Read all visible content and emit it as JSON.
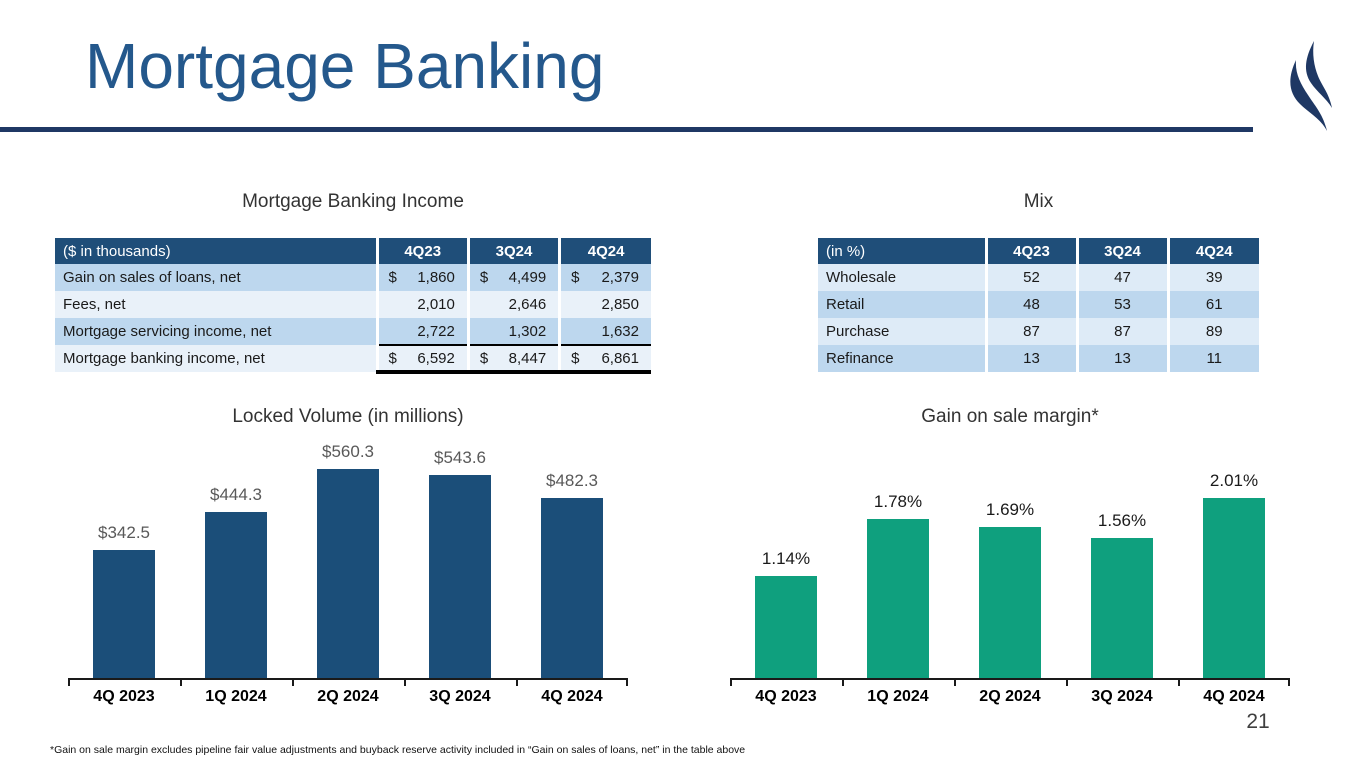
{
  "slide": {
    "title": "Mortgage Banking",
    "page_number": "21",
    "footnote": "*Gain on sale margin excludes pipeline fair value adjustments and buyback reserve activity included in “Gain on sales of loans, net” in the table above",
    "accent_navy": "#1F3864",
    "title_color": "#24588C",
    "table_header_color": "#1F4E79"
  },
  "income_table": {
    "title": "Mortgage Banking Income",
    "unit_label": "($ in thousands)",
    "columns": [
      "4Q23",
      "3Q24",
      "4Q24"
    ],
    "rows": [
      {
        "label": "Gain on sales of loans, net",
        "dollar": true,
        "total": false,
        "values": [
          "1,860",
          "4,499",
          "2,379"
        ]
      },
      {
        "label": "Fees, net",
        "dollar": false,
        "total": false,
        "values": [
          "2,010",
          "2,646",
          "2,850"
        ]
      },
      {
        "label": "Mortgage servicing income, net",
        "dollar": false,
        "total": false,
        "values": [
          "2,722",
          "1,302",
          "1,632"
        ]
      },
      {
        "label": "Mortgage banking income, net",
        "dollar": true,
        "total": true,
        "values": [
          "6,592",
          "8,447",
          "6,861"
        ]
      }
    ]
  },
  "mix_table": {
    "title": "Mix",
    "unit_label": "(in %)",
    "columns": [
      "4Q23",
      "3Q24",
      "4Q24"
    ],
    "rows": [
      {
        "label": "Wholesale",
        "values": [
          "52",
          "47",
          "39"
        ]
      },
      {
        "label": "Retail",
        "values": [
          "48",
          "53",
          "61"
        ]
      },
      {
        "label": "Purchase",
        "values": [
          "87",
          "87",
          "89"
        ]
      },
      {
        "label": "Refinance",
        "values": [
          "13",
          "13",
          "11"
        ]
      }
    ]
  },
  "chart_data": [
    {
      "type": "bar",
      "title": "Locked Volume (in millions)",
      "categories": [
        "4Q 2023",
        "1Q 2024",
        "2Q 2024",
        "3Q 2024",
        "4Q 2024"
      ],
      "values": [
        342.5,
        444.3,
        560.3,
        543.6,
        482.3
      ],
      "labels": [
        "$342.5",
        "$444.3",
        "$560.3",
        "$543.6",
        "$482.3"
      ],
      "xlabel": "",
      "ylabel": "",
      "ylim": [
        0,
        600
      ],
      "grid": false,
      "legend": "none",
      "bar_color": "#1B4E79",
      "label_color": "#595959"
    },
    {
      "type": "bar",
      "title": "Gain on sale margin*",
      "categories": [
        "4Q 2023",
        "1Q 2024",
        "2Q 2024",
        "3Q 2024",
        "4Q 2024"
      ],
      "values": [
        1.14,
        1.78,
        1.69,
        1.56,
        2.01
      ],
      "labels": [
        "1.14%",
        "1.78%",
        "1.69%",
        "1.56%",
        "2.01%"
      ],
      "xlabel": "",
      "ylabel": "",
      "ylim": [
        0,
        2.5
      ],
      "grid": false,
      "legend": "none",
      "bar_color": "#0FA07E",
      "label_color": "#1a1a1a"
    }
  ]
}
